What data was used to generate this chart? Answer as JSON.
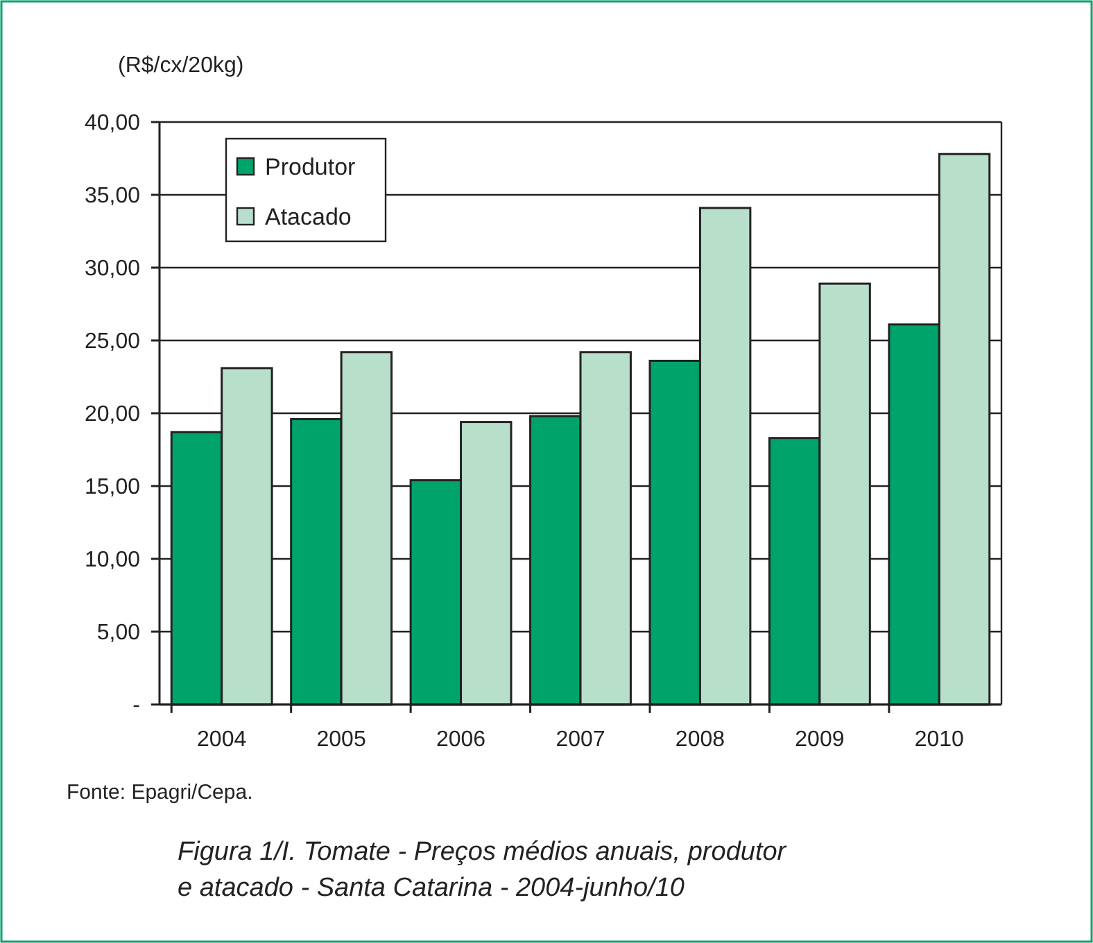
{
  "chart_data": {
    "type": "bar",
    "title": "Figura 1/I. Tomate -  Preços médios anuais,  produtor e atacado - Santa Catarina - 2004-junho/10",
    "ylabel": "(R$/cx/20kg)",
    "annotations": [
      "Fonte: Epagri/Cepa."
    ],
    "categories": [
      "2004",
      "2005",
      "2006",
      "2007",
      "2008",
      "2009",
      "2010"
    ],
    "series": [
      {
        "name": "Produtor",
        "color": "#00a46a",
        "values": [
          18.7,
          19.6,
          15.4,
          19.8,
          23.6,
          18.3,
          26.1
        ]
      },
      {
        "name": "Atacado",
        "color": "#b8dfca",
        "values": [
          23.1,
          24.2,
          19.4,
          24.2,
          34.1,
          28.9,
          37.8
        ]
      }
    ],
    "ylim": [
      0,
      40
    ],
    "yticks": [
      {
        "value": 0,
        "label": "-"
      },
      {
        "value": 5,
        "label": "5,00"
      },
      {
        "value": 10,
        "label": "10,00"
      },
      {
        "value": 15,
        "label": "15,00"
      },
      {
        "value": 20,
        "label": "20,00"
      },
      {
        "value": 25,
        "label": "25,00"
      },
      {
        "value": 30,
        "label": "30,00"
      },
      {
        "value": 35,
        "label": "35,00"
      },
      {
        "value": 40,
        "label": "40,00"
      }
    ],
    "grid": "y",
    "legend": "top left"
  }
}
